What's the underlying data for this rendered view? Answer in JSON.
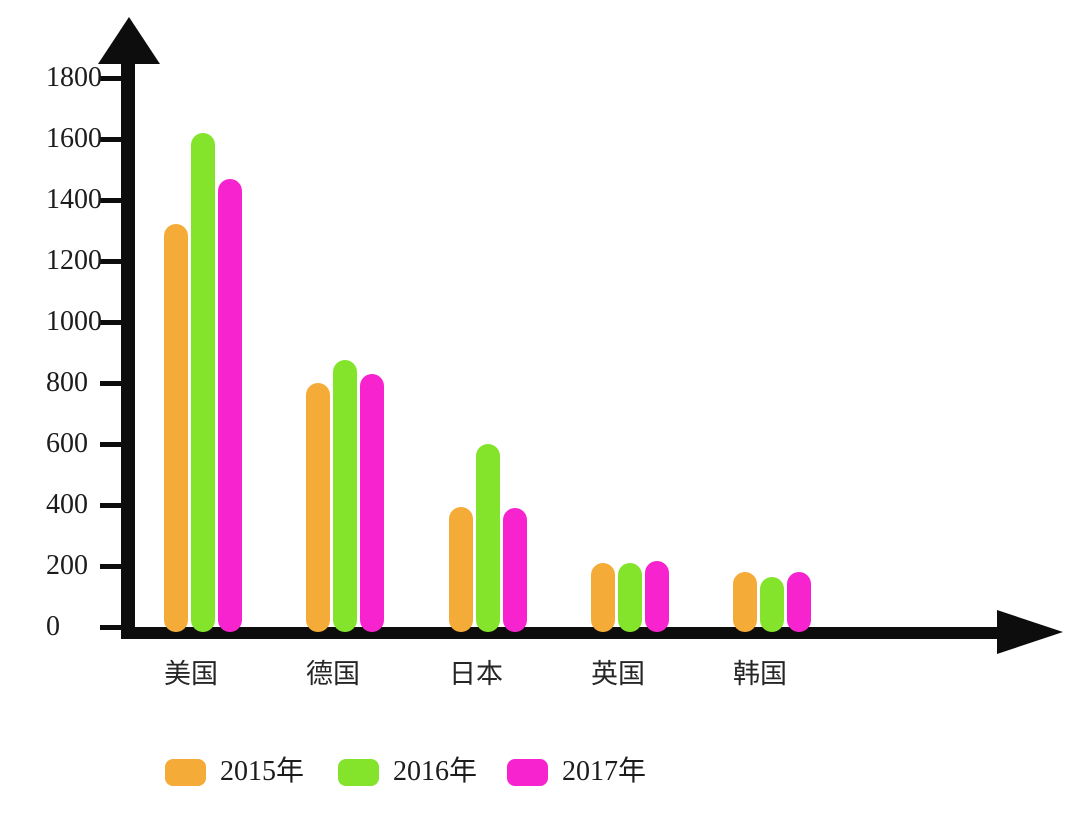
{
  "chart_data": {
    "type": "bar",
    "title": "",
    "xlabel": "",
    "ylabel": "",
    "categories": [
      "美国",
      "德国",
      "日本",
      "英国",
      "韩国"
    ],
    "category_keys": [
      "usa",
      "germany",
      "japan",
      "uk",
      "korea"
    ],
    "series": [
      {
        "name": "2015年",
        "key": "2015",
        "color": "#F5AB37",
        "values": [
          1320,
          800,
          395,
          210,
          180
        ]
      },
      {
        "name": "2016年",
        "key": "2016",
        "color": "#84E42C",
        "values": [
          1620,
          875,
          600,
          210,
          165
        ]
      },
      {
        "name": "2017年",
        "key": "2017",
        "color": "#F723CE",
        "values": [
          1470,
          830,
          390,
          215,
          180
        ]
      }
    ],
    "ylim": [
      0,
      1800
    ],
    "yticks": [
      0,
      200,
      400,
      600,
      800,
      1000,
      1200,
      1400,
      1600,
      1800
    ],
    "grid": false,
    "legend_position": "bottom",
    "axis_color": "#0d0d0d",
    "background": "#ffffff"
  }
}
